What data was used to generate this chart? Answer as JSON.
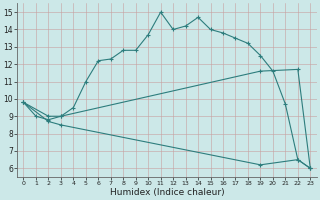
{
  "xlabel": "Humidex (Indice chaleur)",
  "bg_color": "#cce8e8",
  "line_color": "#2d7d7d",
  "xlim": [
    -0.5,
    23.5
  ],
  "ylim": [
    5.5,
    15.5
  ],
  "xticks": [
    0,
    1,
    2,
    3,
    4,
    5,
    6,
    7,
    8,
    9,
    10,
    11,
    12,
    13,
    14,
    15,
    16,
    17,
    18,
    19,
    20,
    21,
    22,
    23
  ],
  "yticks": [
    6,
    7,
    8,
    9,
    10,
    11,
    12,
    13,
    14,
    15
  ],
  "line1_x": [
    0,
    1,
    2,
    3,
    4,
    5,
    6,
    7,
    8,
    9,
    10,
    11,
    12,
    13,
    14,
    15,
    16,
    17,
    18,
    19,
    20,
    21,
    22,
    23
  ],
  "line1_y": [
    9.8,
    9.0,
    8.8,
    9.0,
    9.5,
    11.0,
    12.2,
    12.3,
    12.8,
    12.8,
    13.7,
    15.0,
    14.0,
    14.2,
    14.7,
    14.0,
    13.8,
    13.5,
    13.2,
    12.5,
    11.6,
    9.7,
    6.5,
    6.0
  ],
  "line2_x": [
    0,
    2,
    3,
    19,
    22,
    23
  ],
  "line2_y": [
    9.8,
    9.0,
    9.0,
    11.6,
    11.7,
    6.0
  ],
  "line3_x": [
    0,
    2,
    3,
    19,
    22,
    23
  ],
  "line3_y": [
    9.8,
    8.7,
    8.5,
    6.2,
    6.5,
    6.0
  ]
}
